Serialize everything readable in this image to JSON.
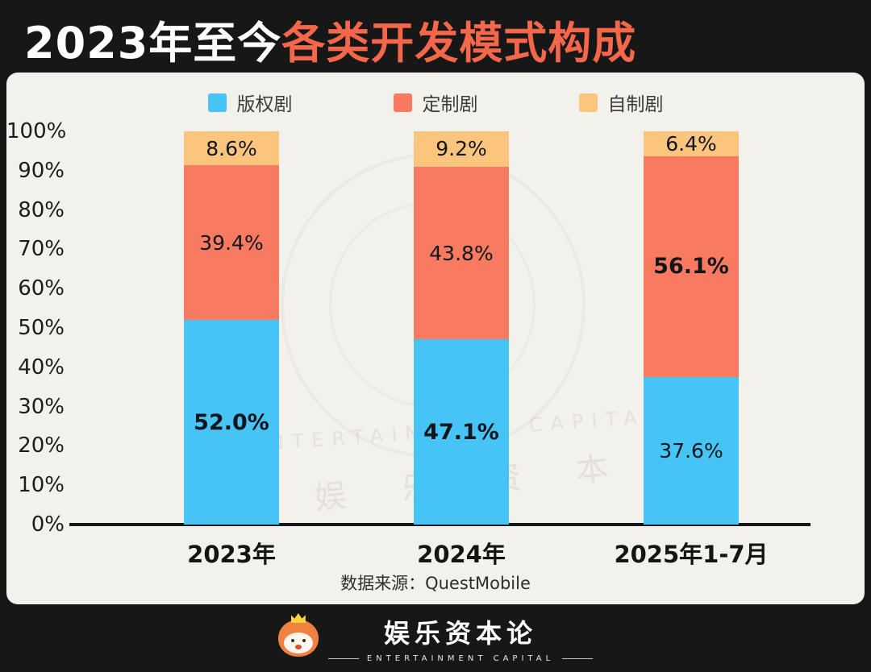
{
  "header": {
    "title_white": "2023年至今",
    "title_orange": "各类开发模式构成",
    "accent_color": "#f5674a"
  },
  "chart_data": {
    "type": "bar",
    "stacked": true,
    "title": "2023年至今各类开发模式构成",
    "categories": [
      "2023年",
      "2024年",
      "2025年1-7月"
    ],
    "series": [
      {
        "name": "版权剧",
        "color": "#45c4f5",
        "values": [
          52.0,
          47.1,
          37.6
        ]
      },
      {
        "name": "定制剧",
        "color": "#f87a60",
        "values": [
          39.4,
          43.8,
          56.1
        ]
      },
      {
        "name": "自制剧",
        "color": "#fbc57d",
        "values": [
          8.6,
          9.2,
          6.4
        ]
      }
    ],
    "yticks": [
      "100%",
      "90%",
      "80%",
      "70%",
      "60%",
      "50%",
      "40%",
      "30%",
      "20%",
      "10%",
      "0%"
    ],
    "ylim": [
      0,
      100
    ],
    "value_format": "percent",
    "legend_position": "top",
    "grid": false
  },
  "source": "数据来源：QuestMobile",
  "watermark": {
    "text_cn": "娱 乐 资 本 论",
    "text_en": "ENTERTAINMENT CAPITAL"
  },
  "footer": {
    "brand": "娱乐资本论",
    "brand_sub": "ENTERTAINMENT CAPITAL"
  }
}
